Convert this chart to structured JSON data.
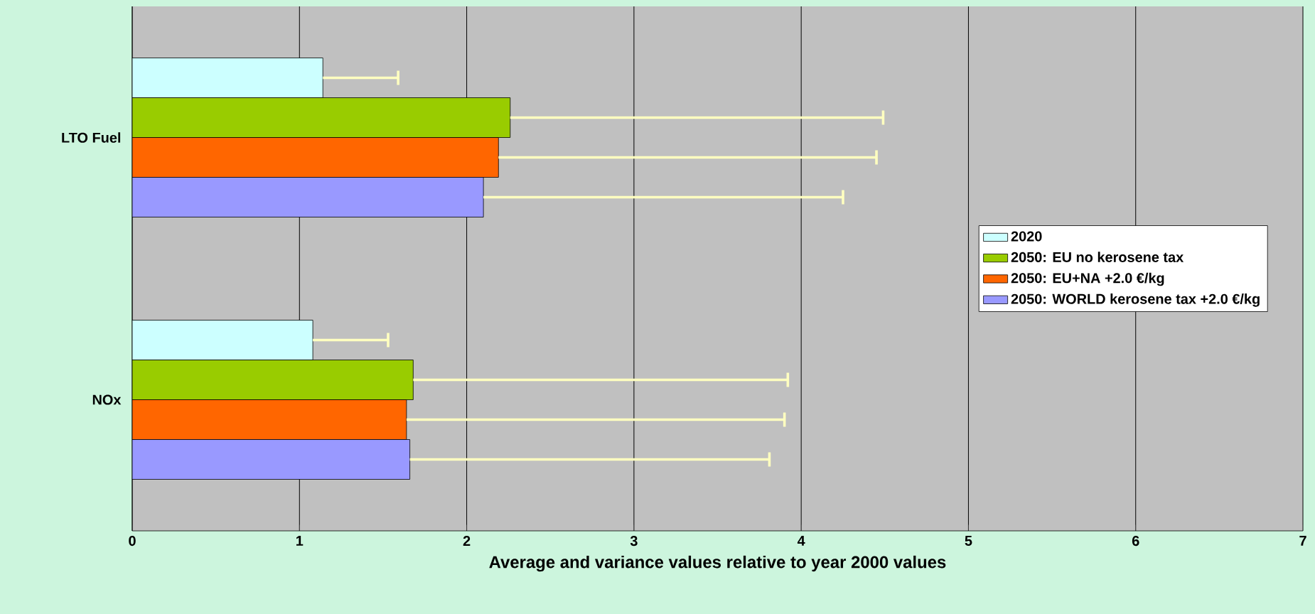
{
  "chart_data": {
    "type": "bar",
    "orientation": "horizontal",
    "xlabel": "Average and variance values relative to year 2000 values",
    "categories": [
      "LTO Fuel",
      "NOx"
    ],
    "series": [
      {
        "name": "2020",
        "color": "#ccffff",
        "values": [
          1.14,
          1.08
        ],
        "errors": [
          [
            1.14,
            1.59
          ],
          [
            1.08,
            1.53
          ]
        ]
      },
      {
        "name": "2050: EU no kerosene tax",
        "color": "#99cc00",
        "values": [
          2.26,
          1.68
        ],
        "errors": [
          [
            2.26,
            4.49
          ],
          [
            1.68,
            3.92
          ]
        ]
      },
      {
        "name": "2050: EU+NA +2.0 €/kg",
        "color": "#ff6600",
        "values": [
          2.19,
          1.64
        ],
        "errors": [
          [
            2.19,
            4.45
          ],
          [
            1.64,
            3.9
          ]
        ]
      },
      {
        "name": "2050: WORLD kerosene tax +2.0 €/kg",
        "color": "#9999ff",
        "values": [
          2.1,
          1.66
        ],
        "errors": [
          [
            2.1,
            4.25
          ],
          [
            1.66,
            3.81
          ]
        ]
      }
    ],
    "xlim": [
      0,
      7
    ],
    "xticks": [
      0,
      1,
      2,
      3,
      4,
      5,
      6,
      7
    ],
    "grid": "x",
    "legend": "right"
  }
}
